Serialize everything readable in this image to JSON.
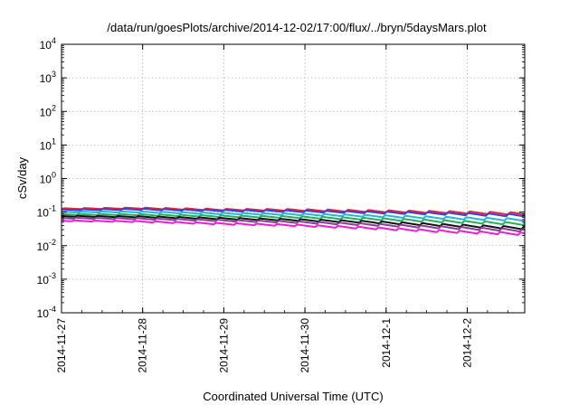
{
  "chart_data": {
    "type": "line",
    "title": "/data/run/goesPlots/archive/2014-12-02/17:00/flux/../bryn/5daysMars.plot",
    "xlabel": "Coordinated Universal Time (UTC)",
    "ylabel": "cSv/day",
    "y_scale": "log",
    "ylim": [
      0.0001,
      10000
    ],
    "y_ticks": [
      {
        "value": 0.0001,
        "base": "10",
        "exp": "-4"
      },
      {
        "value": 0.001,
        "base": "10",
        "exp": "-3"
      },
      {
        "value": 0.01,
        "base": "10",
        "exp": "-2"
      },
      {
        "value": 0.1,
        "base": "10",
        "exp": "-1"
      },
      {
        "value": 1,
        "base": "10",
        "exp": "0"
      },
      {
        "value": 10,
        "base": "10",
        "exp": "1"
      },
      {
        "value": 100,
        "base": "10",
        "exp": "2"
      },
      {
        "value": 1000,
        "base": "10",
        "exp": "3"
      },
      {
        "value": 10000,
        "base": "10",
        "exp": "4"
      }
    ],
    "xlim": [
      "2014-11-27 00:00",
      "2014-12-02 17:00"
    ],
    "x_ticks": [
      "2014-11-27",
      "2014-11-28",
      "2014-11-29",
      "2014-11-30",
      "2014-12-1",
      "2014-12-2"
    ],
    "grid": true,
    "periodic_sawtooth_period_hours": 6,
    "series": [
      {
        "color": "#e8262a",
        "values": [
          0.125,
          0.13,
          0.118,
          0.115,
          0.106,
          0.098,
          0.088
        ]
      },
      {
        "color": "#3a3af0",
        "values": [
          0.115,
          0.12,
          0.11,
          0.105,
          0.097,
          0.088,
          0.078
        ]
      },
      {
        "color": "#1fb8d8",
        "values": [
          0.1,
          0.1,
          0.09,
          0.085,
          0.076,
          0.066,
          0.058
        ]
      },
      {
        "color": "#22b05a",
        "values": [
          0.085,
          0.083,
          0.075,
          0.07,
          0.062,
          0.052,
          0.044
        ]
      },
      {
        "color": "#111111",
        "values": [
          0.075,
          0.072,
          0.064,
          0.058,
          0.05,
          0.04,
          0.033
        ]
      },
      {
        "color": "#8a3a9a",
        "values": [
          0.066,
          0.063,
          0.056,
          0.05,
          0.042,
          0.034,
          0.028
        ]
      },
      {
        "color": "#ee1cd8",
        "values": [
          0.055,
          0.052,
          0.045,
          0.04,
          0.033,
          0.026,
          0.022
        ]
      }
    ]
  }
}
